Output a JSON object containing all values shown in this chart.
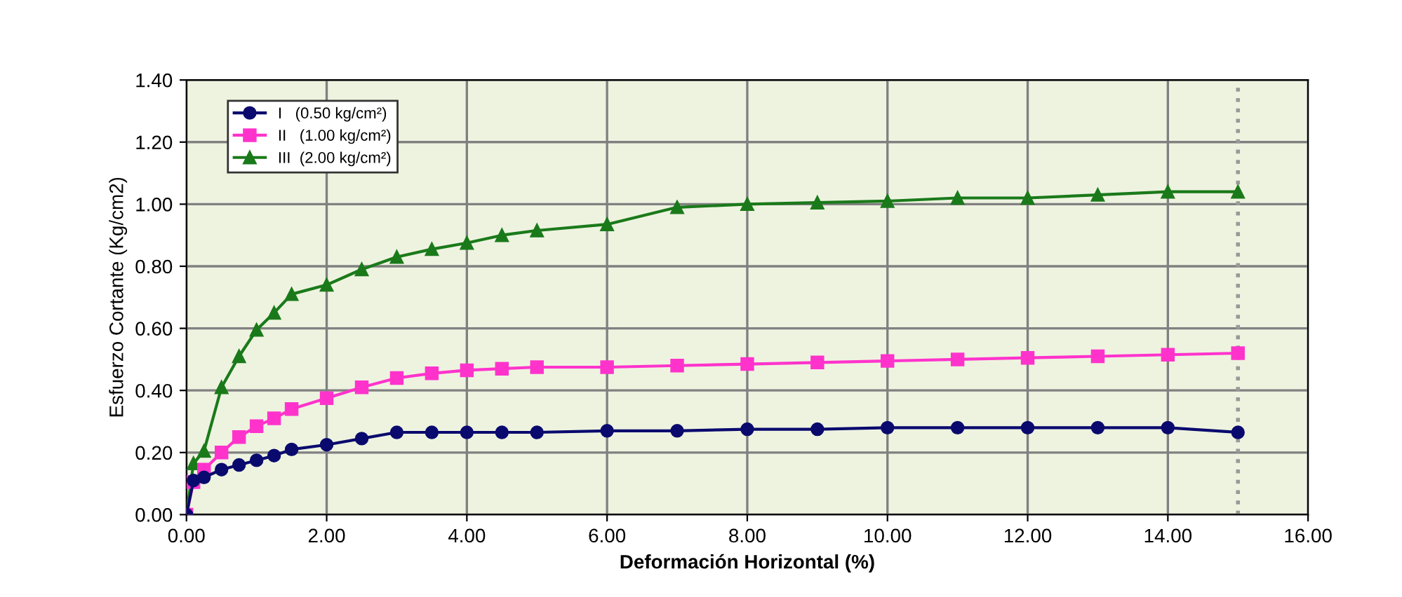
{
  "chart_data": {
    "type": "line",
    "xlabel": "Deformación Horizontal (%)",
    "ylabel": "Esfuerzo Cortante (Kg/cm2)",
    "x": [
      0,
      0.1,
      0.25,
      0.5,
      0.75,
      1,
      1.25,
      1.5,
      2,
      2.5,
      3,
      3.5,
      4,
      4.5,
      5,
      6,
      7,
      8,
      9,
      10,
      11,
      12,
      13,
      14,
      15
    ],
    "series": [
      {
        "name": "I   (0.50 kg/cm²)",
        "color": "#0a0a6e",
        "marker": "circle",
        "values": [
          0,
          0.11,
          0.12,
          0.145,
          0.16,
          0.175,
          0.19,
          0.21,
          0.225,
          0.245,
          0.265,
          0.265,
          0.265,
          0.265,
          0.265,
          0.27,
          0.27,
          0.275,
          0.275,
          0.28,
          0.28,
          0.28,
          0.28,
          0.28,
          0.265
        ]
      },
      {
        "name": "II   (1.00 kg/cm²)",
        "color": "#ff33cc",
        "marker": "square",
        "values": [
          0,
          0.105,
          0.145,
          0.2,
          0.25,
          0.285,
          0.31,
          0.34,
          0.375,
          0.41,
          0.44,
          0.455,
          0.465,
          0.47,
          0.475,
          0.475,
          0.48,
          0.485,
          0.49,
          0.495,
          0.5,
          0.505,
          0.51,
          0.515,
          0.52
        ]
      },
      {
        "name": "III  (2.00 kg/cm²)",
        "color": "#1a7a1a",
        "marker": "triangle",
        "values": [
          0,
          0.165,
          0.205,
          0.41,
          0.51,
          0.595,
          0.65,
          0.71,
          0.74,
          0.79,
          0.83,
          0.855,
          0.875,
          0.9,
          0.915,
          0.935,
          0.99,
          1.0,
          1.005,
          1.01,
          1.02,
          1.02,
          1.03,
          1.04,
          1.04
        ]
      }
    ],
    "xlim": [
      0,
      16
    ],
    "ylim": [
      0,
      1.4
    ],
    "xticks": [
      {
        "value": 0,
        "label": "0.00"
      },
      {
        "value": 2,
        "label": "2.00"
      },
      {
        "value": 4,
        "label": "4.00"
      },
      {
        "value": 6,
        "label": "6.00"
      },
      {
        "value": 8,
        "label": "8.00"
      },
      {
        "value": 10,
        "label": "10.00"
      },
      {
        "value": 12,
        "label": "12.00"
      },
      {
        "value": 14,
        "label": "14.00"
      },
      {
        "value": 16,
        "label": "16.00"
      }
    ],
    "yticks": [
      {
        "value": 0,
        "label": "0.00"
      },
      {
        "value": 0.2,
        "label": "0.20"
      },
      {
        "value": 0.4,
        "label": "0.40"
      },
      {
        "value": 0.6,
        "label": "0.60"
      },
      {
        "value": 0.8,
        "label": "0.80"
      },
      {
        "value": 1.0,
        "label": "1.00"
      },
      {
        "value": 1.2,
        "label": "1.20"
      },
      {
        "value": 1.4,
        "label": "1.40"
      }
    ],
    "ref_lines": [
      {
        "axis": "x",
        "value": 15,
        "color": "#999999",
        "line_style": "dotted"
      }
    ],
    "grid": true,
    "legend": "top left",
    "line_style": "solid"
  }
}
